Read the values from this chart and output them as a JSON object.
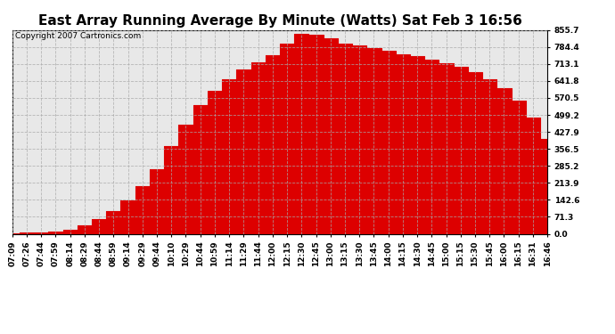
{
  "title": "East Array Running Average By Minute (Watts) Sat Feb 3 16:56",
  "copyright": "Copyright 2007 Cartronics.com",
  "fill_color": "#dd0000",
  "background_color": "#ffffff",
  "plot_bg_color": "#e8e8e8",
  "grid_color": "#aaaaaa",
  "ylim": [
    0.0,
    855.7
  ],
  "yticks": [
    0.0,
    71.3,
    142.6,
    213.9,
    285.2,
    356.5,
    427.9,
    499.2,
    570.5,
    641.8,
    713.1,
    784.4,
    855.7
  ],
  "xtick_labels": [
    "07:09",
    "07:26",
    "07:44",
    "07:59",
    "08:14",
    "08:29",
    "08:44",
    "08:59",
    "09:14",
    "09:29",
    "09:44",
    "10:10",
    "10:29",
    "10:44",
    "10:59",
    "11:14",
    "11:29",
    "11:44",
    "12:00",
    "12:15",
    "12:30",
    "12:45",
    "13:00",
    "13:15",
    "13:30",
    "13:45",
    "14:00",
    "14:15",
    "14:30",
    "14:45",
    "15:00",
    "15:15",
    "15:30",
    "15:45",
    "16:00",
    "16:15",
    "16:31",
    "16:46"
  ],
  "values": [
    3,
    4,
    6,
    10,
    18,
    35,
    60,
    95,
    140,
    200,
    270,
    370,
    460,
    540,
    600,
    650,
    690,
    720,
    750,
    800,
    840,
    835,
    820,
    800,
    790,
    780,
    770,
    755,
    745,
    730,
    715,
    700,
    680,
    650,
    610,
    560,
    490,
    400
  ],
  "title_fontsize": 11,
  "tick_fontsize": 6.5,
  "copyright_fontsize": 6.5
}
